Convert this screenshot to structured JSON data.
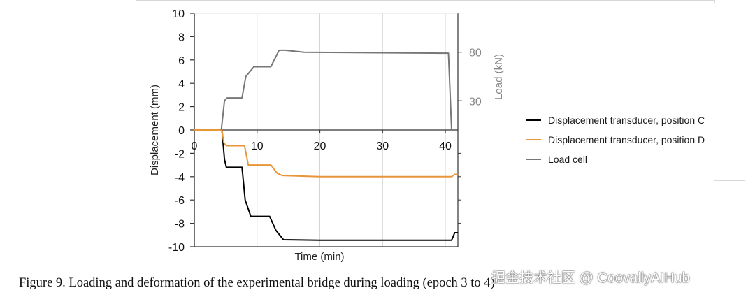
{
  "chart_data": {
    "type": "line",
    "x_label": "Time (min)",
    "y_label": "Displacement (mm)",
    "y2_label": "Load (kN)",
    "x_range": [
      0,
      42
    ],
    "y_range": [
      -10,
      10
    ],
    "y2_range": [
      0,
      120
    ],
    "x_ticks": [
      "0",
      "10",
      "20",
      "30",
      "40"
    ],
    "x_tick_values": [
      0,
      10,
      20,
      30,
      40
    ],
    "y_ticks": [
      "10",
      "8",
      "6",
      "4",
      "2",
      "0",
      "-2",
      "-4",
      "-6",
      "-8",
      "-10"
    ],
    "y_tick_values": [
      10,
      8,
      6,
      4,
      2,
      0,
      -2,
      -4,
      -6,
      -8,
      -10
    ],
    "y2_ticks": [
      "30",
      "80"
    ],
    "y2_tick_values": [
      30,
      80
    ],
    "grid": true,
    "legend_position": "right",
    "series": [
      {
        "name": "Displacement transducer, position C",
        "color": "#000000",
        "axis": "left",
        "points": [
          [
            0,
            0
          ],
          [
            4.4,
            0
          ],
          [
            4.8,
            -2.5
          ],
          [
            5.1,
            -3.2
          ],
          [
            7.6,
            -3.2
          ],
          [
            8.1,
            -6.0
          ],
          [
            9.0,
            -7.4
          ],
          [
            12.0,
            -7.4
          ],
          [
            13.0,
            -8.6
          ],
          [
            14.2,
            -9.4
          ],
          [
            20,
            -9.45
          ],
          [
            41.0,
            -9.45
          ],
          [
            41.5,
            -8.8
          ],
          [
            42,
            -8.8
          ]
        ]
      },
      {
        "name": "Displacement transducer, position D",
        "color": "#e8953a",
        "axis": "left",
        "points": [
          [
            0,
            0
          ],
          [
            4.4,
            0
          ],
          [
            4.7,
            -1.1
          ],
          [
            5.1,
            -1.35
          ],
          [
            8.0,
            -1.35
          ],
          [
            8.6,
            -3.0
          ],
          [
            12.2,
            -3.0
          ],
          [
            13.2,
            -3.7
          ],
          [
            14.0,
            -3.9
          ],
          [
            20,
            -4.0
          ],
          [
            41.0,
            -4.0
          ],
          [
            41.5,
            -3.8
          ],
          [
            42,
            -3.8
          ]
        ]
      },
      {
        "name": "Load cell",
        "color": "#777777",
        "axis": "right",
        "points": [
          [
            4.3,
            0
          ],
          [
            4.8,
            30
          ],
          [
            5.2,
            33
          ],
          [
            7.6,
            33
          ],
          [
            8.2,
            55
          ],
          [
            9.5,
            65
          ],
          [
            12.2,
            65
          ],
          [
            13.5,
            82
          ],
          [
            14.5,
            82
          ],
          [
            17.5,
            80
          ],
          [
            40.5,
            79
          ],
          [
            41.0,
            0
          ]
        ]
      }
    ]
  },
  "caption": "Figure 9. Loading and deformation of the experimental bridge during loading (epoch 3 to 4)",
  "watermark": "掘金技术社区 @ CoovallyAIHub"
}
